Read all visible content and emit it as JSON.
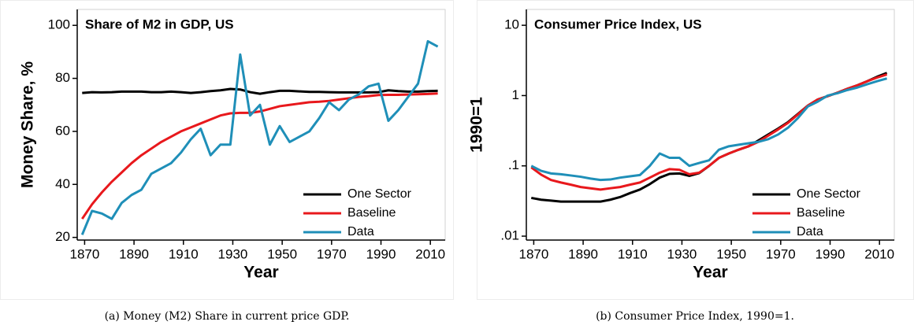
{
  "chart_data": [
    {
      "type": "line",
      "title": "Share of M2 in GDP, US",
      "caption": "(a) Money (M2) Share in current price GDP.",
      "x_label": "Year",
      "y_label": "Money Share, %",
      "x": [
        1869,
        1873,
        1877,
        1881,
        1885,
        1889,
        1893,
        1897,
        1901,
        1905,
        1909,
        1913,
        1917,
        1921,
        1925,
        1929,
        1933,
        1937,
        1941,
        1945,
        1949,
        1953,
        1957,
        1961,
        1965,
        1969,
        1973,
        1977,
        1981,
        1985,
        1989,
        1993,
        1997,
        2001,
        2005,
        2009,
        2013
      ],
      "xlim": [
        1867,
        2016
      ],
      "xticks": [
        1870,
        1890,
        1910,
        1930,
        1950,
        1970,
        1990,
        2010
      ],
      "ylim": [
        19,
        106
      ],
      "yticks": [
        20,
        40,
        60,
        80,
        100
      ],
      "log_y": false,
      "legend": "lower right",
      "series": [
        {
          "name": "One Sector",
          "color": "#000000",
          "values": [
            74.5,
            74.8,
            74.7,
            74.8,
            75,
            75,
            75,
            74.8,
            74.8,
            75,
            74.8,
            74.5,
            74.8,
            75.2,
            75.5,
            76,
            75.8,
            74.8,
            74.2,
            74.8,
            75.3,
            75.3,
            75.1,
            74.9,
            74.9,
            74.8,
            74.7,
            74.7,
            74.7,
            74.7,
            74.8,
            75.5,
            75.2,
            75,
            75,
            75.2,
            75.3
          ]
        },
        {
          "name": "Baseline",
          "color": "#e8181c",
          "values": [
            27,
            32.5,
            37,
            41,
            44.5,
            48,
            51,
            53.5,
            56,
            58,
            60,
            61.5,
            63,
            64.5,
            66,
            66.8,
            67,
            67,
            67.5,
            68.5,
            69.5,
            70,
            70.5,
            71,
            71.2,
            71.5,
            72,
            72.5,
            73,
            73.3,
            73.7,
            73.8,
            73.8,
            73.9,
            74,
            74.1,
            74.3
          ]
        },
        {
          "name": "Data",
          "color": "#1f8fb8",
          "values": [
            21,
            30,
            29,
            27,
            33,
            36,
            38,
            44,
            46,
            48,
            52,
            57,
            61,
            51,
            55,
            55,
            89,
            66,
            70,
            55,
            62,
            56,
            58,
            60,
            65,
            71,
            68,
            72,
            74,
            77,
            78,
            64,
            68,
            73,
            78,
            94,
            92
          ]
        }
      ]
    },
    {
      "type": "line",
      "title": "Consumer Price Index, US",
      "caption": "(b) Consumer Price Index, 1990=1.",
      "x_label": "Year",
      "y_label": "1990=1",
      "x": [
        1869,
        1873,
        1877,
        1881,
        1885,
        1889,
        1893,
        1897,
        1901,
        1905,
        1909,
        1913,
        1917,
        1921,
        1925,
        1929,
        1933,
        1937,
        1941,
        1945,
        1949,
        1953,
        1957,
        1961,
        1965,
        1969,
        1973,
        1977,
        1981,
        1985,
        1989,
        1993,
        1997,
        2001,
        2005,
        2009,
        2013
      ],
      "xlim": [
        1867,
        2016
      ],
      "xticks": [
        1870,
        1890,
        1910,
        1930,
        1950,
        1970,
        1990,
        2010
      ],
      "ylim": [
        0.0088,
        16.8
      ],
      "yticks": [
        {
          "value": 0.01,
          "label": ".01"
        },
        {
          "value": 0.1,
          "label": ".1"
        },
        1,
        10
      ],
      "log_y": true,
      "legend": "lower right",
      "series": [
        {
          "name": "One Sector",
          "color": "#000000",
          "values": [
            0.035,
            0.033,
            0.032,
            0.031,
            0.031,
            0.031,
            0.031,
            0.031,
            0.033,
            0.036,
            0.041,
            0.046,
            0.055,
            0.068,
            0.077,
            0.078,
            0.072,
            0.079,
            0.1,
            0.13,
            0.15,
            0.17,
            0.19,
            0.23,
            0.28,
            0.34,
            0.42,
            0.55,
            0.72,
            0.88,
            0.98,
            1.1,
            1.25,
            1.4,
            1.6,
            1.85,
            2.1
          ]
        },
        {
          "name": "Baseline",
          "color": "#e8181c",
          "values": [
            0.095,
            0.075,
            0.063,
            0.058,
            0.054,
            0.05,
            0.048,
            0.046,
            0.048,
            0.05,
            0.054,
            0.058,
            0.068,
            0.08,
            0.09,
            0.088,
            0.076,
            0.08,
            0.1,
            0.13,
            0.15,
            0.17,
            0.19,
            0.22,
            0.27,
            0.33,
            0.41,
            0.54,
            0.72,
            0.88,
            0.98,
            1.1,
            1.25,
            1.4,
            1.6,
            1.8,
            2
          ]
        },
        {
          "name": "Data",
          "color": "#1f8fb8",
          "values": [
            0.1,
            0.085,
            0.078,
            0.076,
            0.073,
            0.07,
            0.066,
            0.063,
            0.064,
            0.068,
            0.071,
            0.074,
            0.1,
            0.15,
            0.13,
            0.13,
            0.1,
            0.11,
            0.12,
            0.17,
            0.19,
            0.2,
            0.21,
            0.22,
            0.24,
            0.28,
            0.35,
            0.48,
            0.7,
            0.82,
            1,
            1.08,
            1.2,
            1.3,
            1.45,
            1.6,
            1.75
          ]
        }
      ]
    }
  ]
}
